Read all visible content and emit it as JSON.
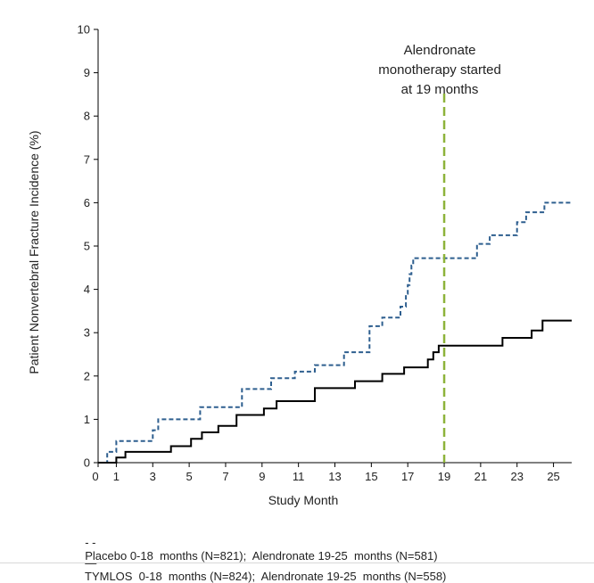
{
  "chart_data": {
    "type": "line",
    "xlabel": "Study Month",
    "ylabel": "Patient Nonvertebral  Fracture Incidence (%)",
    "xlim": [
      0,
      26
    ],
    "ylim": [
      0,
      10
    ],
    "x_ticks": [
      {
        "value": 0,
        "label": "0"
      },
      {
        "value": 1,
        "label": "1"
      },
      {
        "value": 3,
        "label": "3"
      },
      {
        "value": 5,
        "label": "5"
      },
      {
        "value": 7,
        "label": "7"
      },
      {
        "value": 9,
        "label": "9"
      },
      {
        "value": 11,
        "label": "11"
      },
      {
        "value": 13,
        "label": "13"
      },
      {
        "value": 15,
        "label": "15"
      },
      {
        "value": 17,
        "label": "17"
      },
      {
        "value": 19,
        "label": "19"
      },
      {
        "value": 21,
        "label": "21"
      },
      {
        "value": 23,
        "label": "23"
      },
      {
        "value": 25,
        "label": "25"
      }
    ],
    "y_ticks": [
      0,
      1,
      2,
      3,
      4,
      5,
      6,
      7,
      8,
      9,
      10
    ],
    "annotation": {
      "x": 19,
      "lines": [
        "Alendronate",
        "monotherapy  started",
        "at 19 months"
      ],
      "color": "#8db33a"
    },
    "series": [
      {
        "name": "Placebo",
        "style": "dashed",
        "color": "#2e5f8f",
        "points": [
          [
            0,
            0
          ],
          [
            0.5,
            0.25
          ],
          [
            1.0,
            0.5
          ],
          [
            3.0,
            0.75
          ],
          [
            3.3,
            1.0
          ],
          [
            5.6,
            1.28
          ],
          [
            7.9,
            1.7
          ],
          [
            9.5,
            1.95
          ],
          [
            10.8,
            2.1
          ],
          [
            11.9,
            2.25
          ],
          [
            13.5,
            2.55
          ],
          [
            14.9,
            3.15
          ],
          [
            15.6,
            3.35
          ],
          [
            16.6,
            3.6
          ],
          [
            16.9,
            3.9
          ],
          [
            17.0,
            4.1
          ],
          [
            17.1,
            4.35
          ],
          [
            17.2,
            4.55
          ],
          [
            17.3,
            4.72
          ],
          [
            20.8,
            5.05
          ],
          [
            21.5,
            5.25
          ],
          [
            23.0,
            5.55
          ],
          [
            23.5,
            5.78
          ],
          [
            24.5,
            6.0
          ],
          [
            26.0,
            6.0
          ]
        ]
      },
      {
        "name": "TYMLOS",
        "style": "solid",
        "color": "#000000",
        "points": [
          [
            0,
            0
          ],
          [
            1.0,
            0.12
          ],
          [
            1.5,
            0.25
          ],
          [
            4.0,
            0.38
          ],
          [
            5.1,
            0.55
          ],
          [
            5.7,
            0.7
          ],
          [
            6.6,
            0.85
          ],
          [
            7.6,
            1.1
          ],
          [
            9.1,
            1.25
          ],
          [
            9.8,
            1.42
          ],
          [
            11.9,
            1.72
          ],
          [
            14.1,
            1.88
          ],
          [
            15.6,
            2.05
          ],
          [
            16.8,
            2.2
          ],
          [
            18.1,
            2.38
          ],
          [
            18.4,
            2.55
          ],
          [
            18.7,
            2.7
          ],
          [
            22.2,
            2.88
          ],
          [
            23.8,
            3.05
          ],
          [
            24.4,
            3.28
          ],
          [
            26.0,
            3.28
          ]
        ]
      }
    ],
    "legend": [
      {
        "symbol": "- -",
        "text": "Placebo 0-18  months (N=821);  Alendronate 19-25  months (N=581)"
      },
      {
        "symbol": "—",
        "text": "TYMLOS  0-18  months (N=824);  Alendronate 19-25  months (N=558)"
      }
    ]
  }
}
